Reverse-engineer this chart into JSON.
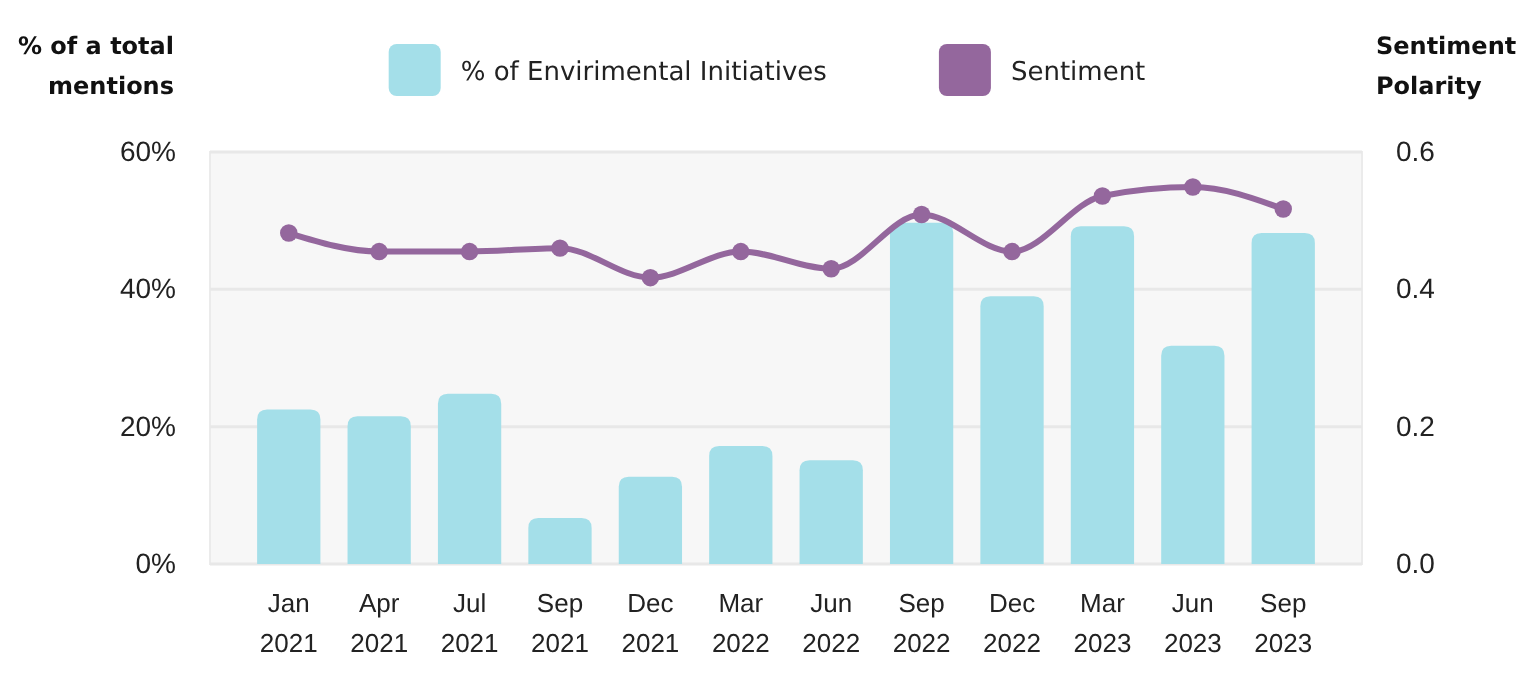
{
  "chart_data": {
    "type": "bar",
    "ylabel": "% of a total mentions",
    "y2label": "Sentiment Polarity",
    "categories": [
      "Jan 2021",
      "Apr 2021",
      "Jul 2021",
      "Sep 2021",
      "Dec 2021",
      "Mar 2022",
      "Jun 2022",
      "Sep 2022",
      "Dec 2022",
      "Mar 2023",
      "Jun 2023",
      "Sep 2023"
    ],
    "series": [
      {
        "name": "% of Envirimental Initiatives",
        "color": "#a4dfe9",
        "values": [
          22.5,
          21.5,
          24.8,
          6.7,
          12.7,
          17.2,
          15.1,
          49.7,
          39,
          49.2,
          31.8,
          48.2
        ]
      },
      {
        "name": "Sentiment",
        "type": "line",
        "axis": "y2",
        "color": "#94679d",
        "marker": "circle",
        "values": [
          0.482,
          0.455,
          0.455,
          0.46,
          0.417,
          0.455,
          0.43,
          0.509,
          0.455,
          0.536,
          0.549,
          0.517
        ]
      }
    ],
    "ylim": [
      0,
      60
    ],
    "yticks": [
      {
        "value": 0,
        "label": "0%"
      },
      {
        "value": 20,
        "label": "20%"
      },
      {
        "value": 40,
        "label": "40%"
      },
      {
        "value": 60,
        "label": "60%"
      }
    ],
    "y2lim": [
      0,
      0.6
    ],
    "y2ticks": [
      {
        "value": 0,
        "label": "0.0"
      },
      {
        "value": 0.2,
        "label": "0.2"
      },
      {
        "value": 0.4,
        "label": "0.4"
      },
      {
        "value": 0.6,
        "label": "0.6"
      }
    ],
    "grid": "y",
    "legend": "top"
  }
}
